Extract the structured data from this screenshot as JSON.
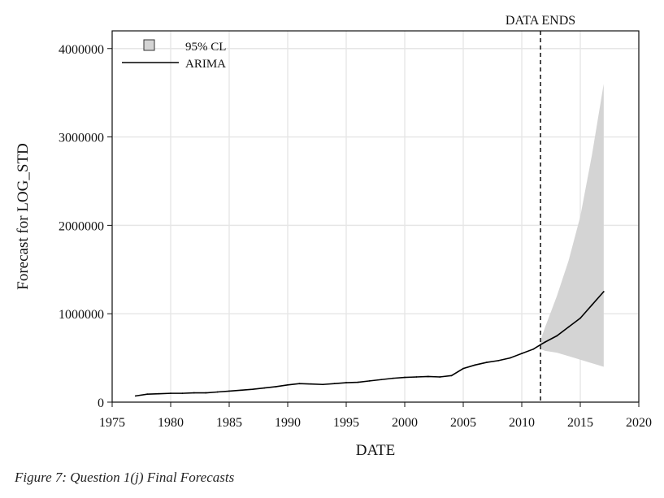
{
  "caption": "Figure 7: Question 1(j) Final Forecasts",
  "chart_data": {
    "type": "line",
    "xlabel": "DATE",
    "ylabel": "Forecast for LOG_STD",
    "xlim": [
      1975,
      2020
    ],
    "ylim": [
      0,
      4200000
    ],
    "x_ticks": [
      "1975",
      "1980",
      "1985",
      "1990",
      "1995",
      "2000",
      "2005",
      "2010",
      "2015",
      "2020"
    ],
    "y_ticks": [
      "0",
      "1000000",
      "2000000",
      "3000000",
      "4000000"
    ],
    "grid": true,
    "legend_position": "top-left",
    "legend": [
      {
        "label": "95% CL",
        "kind": "band"
      },
      {
        "label": "ARIMA",
        "kind": "line"
      }
    ],
    "annotation": {
      "text": "DATA ENDS",
      "x": 2011.6
    },
    "colors": {
      "line": "#000000",
      "band": "#d4d4d4",
      "grid": "#e6e6e6"
    },
    "series": [
      {
        "name": "ARIMA",
        "x": [
          1977,
          1978,
          1979,
          1980,
          1981,
          1982,
          1983,
          1984,
          1985,
          1986,
          1987,
          1988,
          1989,
          1990,
          1991,
          1992,
          1993,
          1994,
          1995,
          1996,
          1997,
          1998,
          1999,
          2000,
          2001,
          2002,
          2003,
          2004,
          2005,
          2006,
          2007,
          2008,
          2009,
          2010,
          2011,
          2011.6,
          2012,
          2013,
          2014,
          2015,
          2016,
          2017
        ],
        "y": [
          70000,
          90000,
          95000,
          100000,
          100000,
          105000,
          105000,
          115000,
          125000,
          135000,
          145000,
          160000,
          175000,
          195000,
          210000,
          205000,
          200000,
          210000,
          220000,
          225000,
          240000,
          255000,
          270000,
          280000,
          285000,
          290000,
          285000,
          300000,
          380000,
          420000,
          450000,
          470000,
          500000,
          550000,
          600000,
          650000,
          680000,
          750000,
          850000,
          950000,
          1100000,
          1250000
        ]
      }
    ],
    "ci_band": {
      "name": "95% CL",
      "x": [
        2011.6,
        2012,
        2013,
        2014,
        2015,
        2016,
        2016.5,
        2017
      ],
      "lower": [
        600000,
        580000,
        560000,
        520000,
        480000,
        440000,
        420000,
        400000
      ],
      "upper": [
        700000,
        850000,
        1200000,
        1600000,
        2100000,
        2800000,
        3200000,
        3600000
      ]
    }
  }
}
